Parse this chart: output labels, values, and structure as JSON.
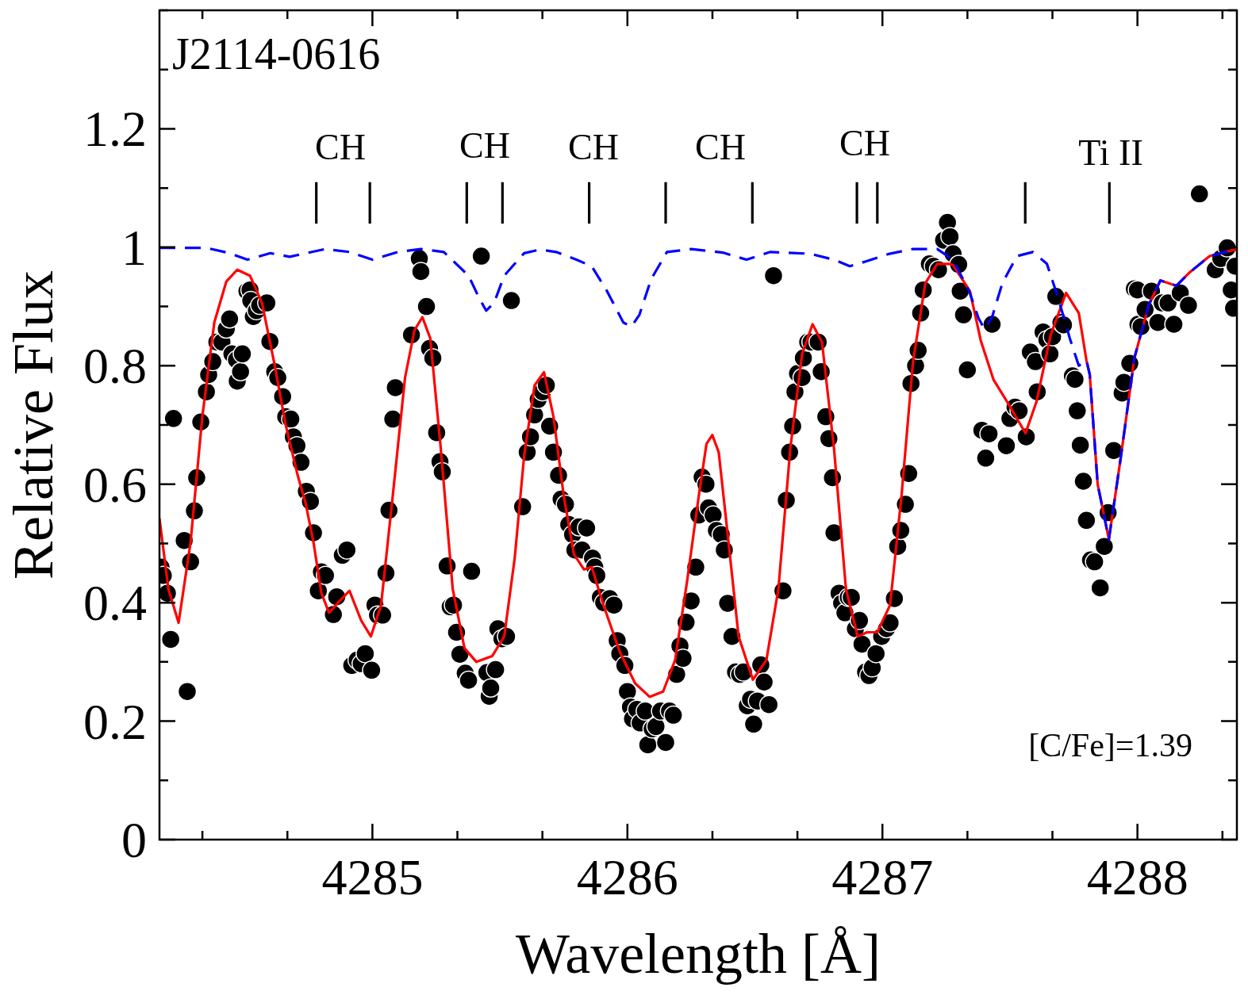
{
  "chart_data": {
    "type": "scatter",
    "xlabel": "Wavelength [Å]",
    "ylabel": "Relative Flux",
    "xlim": [
      4284.165,
      4288.39
    ],
    "ylim": [
      0,
      1.4
    ],
    "xticks": [
      4285,
      4286,
      4287,
      4288
    ],
    "yticks": [
      0,
      0.2,
      0.4,
      0.6,
      0.8,
      1,
      1.2
    ],
    "legend": false,
    "series": [
      {
        "marker": "circle",
        "color": "#000000",
        "x": [
          4284.171,
          4284.18,
          4284.196,
          4284.209,
          4284.22,
          4284.262,
          4284.274,
          4284.287,
          4284.302,
          4284.311,
          4284.327,
          4284.349,
          4284.358,
          4284.374,
          4284.39,
          4284.41,
          4284.427,
          4284.44,
          4284.449,
          4284.467,
          4284.47,
          4284.483,
          4284.49,
          4284.508,
          4284.52,
          4284.523,
          4284.533,
          4284.545,
          4284.558,
          4284.586,
          4284.598,
          4284.617,
          4284.629,
          4284.648,
          4284.66,
          4284.68,
          4284.69,
          4284.704,
          4284.72,
          4284.741,
          4284.757,
          4284.769,
          4284.788,
          4284.8,
          4284.816,
          4284.847,
          4284.86,
          4284.882,
          4284.9,
          4284.919,
          4284.94,
          4284.956,
          4284.972,
          4284.997,
          4285.01,
          4285.02,
          4285.04,
          4285.053,
          4285.065,
          4285.08,
          4285.09,
          4285.153,
          4285.184,
          4285.19,
          4285.212,
          4285.224,
          4285.237,
          4285.252,
          4285.265,
          4285.274,
          4285.293,
          4285.305,
          4285.318,
          4285.33,
          4285.343,
          4285.364,
          4285.377,
          4285.389,
          4285.427,
          4285.449,
          4285.458,
          4285.464,
          4285.483,
          4285.492,
          4285.508,
          4285.526,
          4285.545,
          4285.589,
          4285.607,
          4285.62,
          4285.636,
          4285.65,
          4285.667,
          4285.682,
          4285.695,
          4285.71,
          4285.73,
          4285.74,
          4285.757,
          4285.77,
          4285.785,
          4285.794,
          4285.81,
          4285.822,
          4285.84,
          4285.863,
          4285.872,
          4285.88,
          4285.894,
          4285.907,
          4285.93,
          4285.947,
          4285.96,
          4285.97,
          4285.99,
          4286.0,
          4286.012,
          4286.02,
          4286.037,
          4286.05,
          4286.07,
          4286.08,
          4286.097,
          4286.112,
          4286.13,
          4286.15,
          4286.165,
          4286.18,
          4286.193,
          4286.206,
          4286.218,
          4286.23,
          4286.25,
          4286.268,
          4286.28,
          4286.293,
          4286.308,
          4286.318,
          4286.336,
          4286.349,
          4286.368,
          4286.38,
          4286.393,
          4286.41,
          4286.424,
          4286.44,
          4286.455,
          4286.47,
          4286.483,
          4286.495,
          4286.51,
          4286.523,
          4286.536,
          4286.555,
          4286.573,
          4286.61,
          4286.623,
          4286.636,
          4286.648,
          4286.657,
          4286.667,
          4286.685,
          4286.69,
          4286.707,
          4286.72,
          4286.748,
          4286.76,
          4286.778,
          4286.79,
          4286.804,
          4286.81,
          4286.83,
          4286.84,
          4286.853,
          4286.866,
          4286.878,
          4286.894,
          4286.91,
          4286.92,
          4286.934,
          4286.947,
          4286.96,
          4286.975,
          4286.997,
          4287.016,
          4287.03,
          4287.047,
          4287.06,
          4287.072,
          4287.09,
          4287.103,
          4287.112,
          4287.13,
          4287.14,
          4287.15,
          4287.16,
          4287.184,
          4287.2,
          4287.22,
          4287.24,
          4287.255,
          4287.265,
          4287.277,
          4287.299,
          4287.305,
          4287.318,
          4287.333,
          4287.39,
          4287.405,
          4287.418,
          4287.43,
          4287.486,
          4287.5,
          4287.52,
          4287.536,
          4287.564,
          4287.58,
          4287.6,
          4287.607,
          4287.63,
          4287.645,
          4287.657,
          4287.667,
          4287.68,
          4287.7,
          4287.71,
          4287.745,
          4287.755,
          4287.764,
          4287.776,
          4287.788,
          4287.8,
          4287.816,
          4287.832,
          4287.854,
          4287.87,
          4287.885,
          4287.907,
          4287.94,
          4287.947,
          4287.97,
          4287.988,
          4288.0,
          4288.002,
          4288.014,
          4288.03,
          4288.055,
          4288.08,
          4288.097,
          4288.12,
          4288.143,
          4288.168,
          4288.2,
          4288.243,
          4288.305,
          4288.327,
          4288.352,
          4288.368,
          4288.377,
          4288.383
        ],
        "values": [
          0.46,
          0.446,
          0.416,
          0.338,
          0.711,
          0.505,
          0.25,
          0.469,
          0.555,
          0.611,
          0.705,
          0.756,
          0.785,
          0.807,
          0.84,
          0.84,
          0.862,
          0.879,
          0.82,
          0.81,
          0.774,
          0.79,
          0.82,
          0.926,
          0.928,
          0.91,
          0.883,
          0.893,
          0.902,
          0.906,
          0.841,
          0.79,
          0.78,
          0.748,
          0.714,
          0.71,
          0.68,
          0.665,
          0.637,
          0.588,
          0.571,
          0.518,
          0.42,
          0.452,
          0.446,
          0.38,
          0.41,
          0.48,
          0.489,
          0.294,
          0.303,
          0.297,
          0.314,
          0.286,
          0.396,
          0.379,
          0.379,
          0.45,
          0.556,
          0.71,
          0.763,
          0.852,
          0.981,
          0.959,
          0.9,
          0.829,
          0.813,
          0.687,
          0.638,
          0.621,
          0.462,
          0.393,
          0.396,
          0.35,
          0.313,
          0.281,
          0.269,
          0.453,
          0.985,
          0.282,
          0.242,
          0.256,
          0.287,
          0.356,
          0.339,
          0.343,
          0.91,
          0.562,
          0.654,
          0.68,
          0.717,
          0.743,
          0.756,
          0.767,
          0.698,
          0.654,
          0.615,
          0.575,
          0.566,
          0.532,
          0.515,
          0.489,
          0.528,
          0.489,
          0.526,
          0.475,
          0.46,
          0.446,
          0.409,
          0.4,
          0.407,
          0.396,
          0.336,
          0.314,
          0.294,
          0.25,
          0.224,
          0.204,
          0.22,
          0.197,
          0.217,
          0.16,
          0.187,
          0.191,
          0.217,
          0.164,
          0.217,
          0.21,
          0.279,
          0.327,
          0.306,
          0.367,
          0.403,
          0.46,
          0.548,
          0.612,
          0.6,
          0.56,
          0.548,
          0.522,
          0.515,
          0.489,
          0.399,
          0.343,
          0.283,
          0.279,
          0.283,
          0.226,
          0.237,
          0.195,
          0.234,
          0.295,
          0.266,
          0.228,
          0.952,
          0.42,
          0.573,
          0.654,
          0.698,
          0.756,
          0.787,
          0.78,
          0.813,
          0.84,
          0.84,
          0.84,
          0.79,
          0.714,
          0.677,
          0.611,
          0.518,
          0.416,
          0.399,
          0.383,
          0.409,
          0.409,
          0.356,
          0.37,
          0.33,
          0.283,
          0.277,
          0.29,
          0.314,
          0.343,
          0.356,
          0.366,
          0.407,
          0.495,
          0.522,
          0.566,
          0.618,
          0.77,
          0.8,
          0.826,
          0.889,
          0.928,
          0.972,
          0.968,
          0.962,
          1.012,
          1.042,
          1.018,
          0.989,
          0.971,
          0.926,
          0.886,
          0.793,
          0.691,
          0.644,
          0.685,
          0.87,
          0.665,
          0.711,
          0.73,
          0.724,
          0.68,
          0.823,
          0.807,
          0.756,
          0.857,
          0.844,
          0.82,
          0.849,
          0.917,
          0.873,
          0.869,
          0.783,
          0.777,
          0.724,
          0.666,
          0.605,
          0.539,
          0.472,
          0.469,
          0.425,
          0.495,
          0.552,
          0.657,
          0.754,
          0.772,
          0.804,
          0.93,
          0.928,
          0.87,
          0.866,
          0.895,
          0.926,
          0.873,
          0.906,
          0.906,
          0.87,
          0.923,
          0.902,
          1.09,
          0.962,
          0.981,
          0.999,
          0.928,
          0.897,
          0.968
        ]
      },
      {
        "type": "line",
        "marker": "none",
        "line_style": "solid",
        "color": "#ff0000",
        "x": [
          4284.165,
          4284.2,
          4284.24,
          4284.287,
          4284.333,
          4284.38,
          4284.427,
          4284.47,
          4284.52,
          4284.567,
          4284.614,
          4284.66,
          4284.707,
          4284.738,
          4284.769,
          4284.8,
          4284.83,
          4284.872,
          4284.91,
          4284.956,
          4284.994,
          4285.034,
          4285.08,
          4285.128,
          4285.165,
          4285.196,
          4285.227,
          4285.268,
          4285.315,
          4285.361,
          4285.408,
          4285.47,
          4285.517,
          4285.558,
          4285.595,
          4285.636,
          4285.673,
          4285.71,
          4285.75,
          4285.79,
          4285.83,
          4285.86,
          4285.906,
          4285.97,
          4286.03,
          4286.087,
          4286.14,
          4286.187,
          4286.234,
          4286.28,
          4286.31,
          4286.333,
          4286.358,
          4286.39,
          4286.436,
          4286.492,
          4286.545,
          4286.592,
          4286.639,
          4286.685,
          4286.726,
          4286.763,
          4286.81,
          4286.857,
          4286.903,
          4286.94,
          4286.98,
          4287.03,
          4287.075,
          4287.12,
          4287.168,
          4287.215,
          4287.262,
          4287.277,
          4287.343,
          4287.386,
          4287.436,
          4287.495,
          4287.561,
          4287.604,
          4287.66,
          4287.72,
          4287.77,
          4287.8,
          4287.813,
          4287.844,
          4287.888,
          4287.935,
          4287.988,
          4288.044,
          4288.09,
          4288.153,
          4288.206,
          4288.283,
          4288.371,
          4288.39
        ],
        "values": [
          0.542,
          0.423,
          0.366,
          0.502,
          0.714,
          0.873,
          0.942,
          0.962,
          0.952,
          0.906,
          0.807,
          0.7,
          0.615,
          0.568,
          0.502,
          0.416,
          0.383,
          0.403,
          0.42,
          0.37,
          0.343,
          0.396,
          0.581,
          0.78,
          0.86,
          0.882,
          0.846,
          0.661,
          0.423,
          0.323,
          0.3,
          0.31,
          0.343,
          0.475,
          0.648,
          0.767,
          0.789,
          0.714,
          0.581,
          0.482,
          0.456,
          0.46,
          0.396,
          0.317,
          0.264,
          0.241,
          0.25,
          0.303,
          0.436,
          0.581,
          0.668,
          0.683,
          0.654,
          0.528,
          0.343,
          0.27,
          0.303,
          0.423,
          0.661,
          0.82,
          0.87,
          0.84,
          0.661,
          0.423,
          0.343,
          0.35,
          0.35,
          0.396,
          0.581,
          0.807,
          0.939,
          0.972,
          0.972,
          0.97,
          0.926,
          0.842,
          0.776,
          0.735,
          0.686,
          0.739,
          0.852,
          0.923,
          0.889,
          0.809,
          0.785,
          0.6,
          0.507,
          0.646,
          0.813,
          0.902,
          0.944,
          0.935,
          0.958,
          0.985,
          0.995,
          0.996
        ]
      },
      {
        "type": "line",
        "marker": "none",
        "line_style": "dashed",
        "color": "#0000ff",
        "x": [
          4284.165,
          4284.349,
          4284.44,
          4284.51,
          4284.6,
          4284.676,
          4284.816,
          4284.91,
          4285.0,
          4285.1,
          4285.19,
          4285.28,
          4285.377,
          4285.42,
          4285.446,
          4285.477,
          4285.517,
          4285.595,
          4285.657,
          4285.72,
          4285.8,
          4285.86,
          4285.92,
          4285.984,
          4286.016,
          4286.047,
          4286.093,
          4286.155,
          4286.25,
          4286.374,
          4286.467,
          4286.56,
          4286.716,
          4286.81,
          4286.872,
          4286.935,
          4287.028,
          4287.12,
          4287.215,
          4287.277,
          4287.34,
          4287.377,
          4287.4,
          4287.43,
          4287.47,
          4287.527,
          4287.59,
          4287.645,
          4287.69,
          4287.735,
          4287.77,
          4287.8,
          4287.813,
          4287.844,
          4287.888,
          4287.935,
          4287.988,
          4288.044,
          4288.09,
          4288.153,
          4288.206,
          4288.283,
          4288.371
        ],
        "values": [
          0.999,
          0.999,
          0.99,
          0.979,
          0.99,
          0.984,
          0.997,
          0.992,
          0.979,
          0.992,
          0.997,
          0.992,
          0.952,
          0.913,
          0.893,
          0.906,
          0.952,
          0.99,
          0.996,
          0.992,
          0.979,
          0.968,
          0.926,
          0.873,
          0.866,
          0.886,
          0.946,
          0.992,
          0.997,
          0.991,
          0.979,
          0.992,
          0.989,
          0.979,
          0.968,
          0.976,
          0.989,
          0.997,
          0.997,
          0.979,
          0.926,
          0.88,
          0.862,
          0.882,
          0.939,
          0.985,
          0.992,
          0.972,
          0.913,
          0.846,
          0.8,
          0.809,
          0.785,
          0.6,
          0.507,
          0.646,
          0.813,
          0.902,
          0.944,
          0.935,
          0.958,
          0.985,
          0.995
        ]
      },
      {
        "type": "line",
        "marker": "none",
        "line_style": "solid",
        "color": "#000000",
        "x": [
          4284.78,
          4284.78,
          null,
          4284.99,
          4284.99,
          null,
          4285.37,
          4285.37,
          null,
          4285.51,
          4285.51,
          null,
          4285.85,
          4285.85,
          null,
          4286.15,
          4286.15,
          null,
          4286.49,
          4286.49,
          null,
          4286.9,
          4286.9,
          null,
          4286.98,
          4286.98,
          null,
          4287.56,
          4287.56,
          null,
          4287.89,
          4287.89
        ],
        "values": [
          1.04,
          1.11,
          null,
          1.04,
          1.11,
          null,
          1.04,
          1.11,
          null,
          1.04,
          1.11,
          null,
          1.04,
          1.11,
          null,
          1.04,
          1.11,
          null,
          1.04,
          1.11,
          null,
          1.04,
          1.11,
          null,
          1.04,
          1.11,
          null,
          1.04,
          1.11,
          null,
          1.04,
          1.11
        ]
      }
    ],
    "annotations": [
      "J2114-0616",
      "[C/Fe]=1.39",
      "CH",
      "CH",
      "CH",
      "CH",
      "CH",
      "Ti II"
    ]
  }
}
